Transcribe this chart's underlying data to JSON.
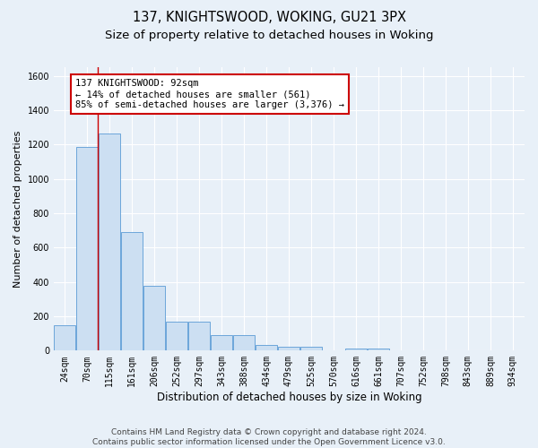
{
  "title1": "137, KNIGHTSWOOD, WOKING, GU21 3PX",
  "title2": "Size of property relative to detached houses in Woking",
  "xlabel": "Distribution of detached houses by size in Woking",
  "ylabel": "Number of detached properties",
  "bar_labels": [
    "24sqm",
    "70sqm",
    "115sqm",
    "161sqm",
    "206sqm",
    "252sqm",
    "297sqm",
    "343sqm",
    "388sqm",
    "434sqm",
    "479sqm",
    "525sqm",
    "570sqm",
    "616sqm",
    "661sqm",
    "707sqm",
    "752sqm",
    "798sqm",
    "843sqm",
    "889sqm",
    "934sqm"
  ],
  "bar_values": [
    150,
    1185,
    1265,
    690,
    375,
    170,
    170,
    88,
    88,
    35,
    25,
    22,
    0,
    13,
    13,
    0,
    0,
    0,
    0,
    0,
    0
  ],
  "bar_color": "#ccdff2",
  "bar_edgecolor": "#5b9bd5",
  "ylim": [
    0,
    1650
  ],
  "yticks": [
    0,
    200,
    400,
    600,
    800,
    1000,
    1200,
    1400,
    1600
  ],
  "annotation_text": "137 KNIGHTSWOOD: 92sqm\n← 14% of detached houses are smaller (561)\n85% of semi-detached houses are larger (3,376) →",
  "annotation_box_color": "#ffffff",
  "annotation_box_edgecolor": "#cc0000",
  "red_line_color": "#cc0000",
  "footer_text": "Contains HM Land Registry data © Crown copyright and database right 2024.\nContains public sector information licensed under the Open Government Licence v3.0.",
  "bg_color": "#e8f0f8",
  "grid_color": "#ffffff",
  "title1_fontsize": 10.5,
  "title2_fontsize": 9.5,
  "xlabel_fontsize": 8.5,
  "ylabel_fontsize": 8,
  "tick_fontsize": 7,
  "annotation_fontsize": 7.5,
  "footer_fontsize": 6.5
}
